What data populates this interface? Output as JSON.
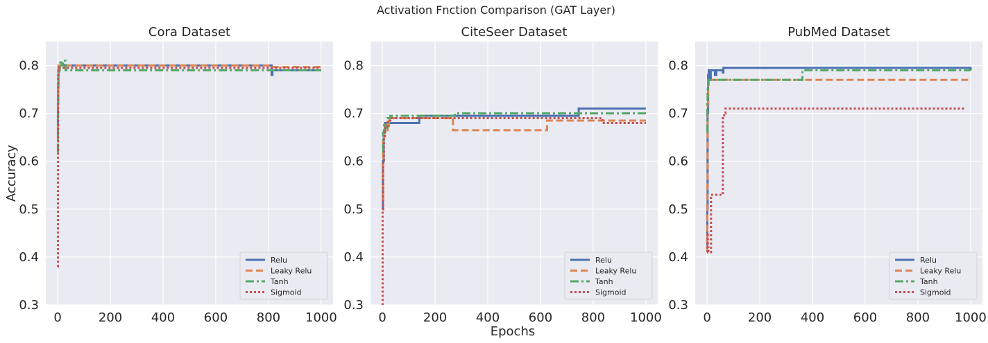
{
  "figure": {
    "suptitle": "Activation Fnction Comparison  (GAT Layer)",
    "ylabel": "Accuracy",
    "xlabel": "Epochs"
  },
  "colors": {
    "Relu": "#4c72b0",
    "Leaky Relu": "#dd8452",
    "Tanh": "#55a868",
    "Sigmoid": "#c44e52"
  },
  "styles": {
    "Relu": "solid",
    "Leaky Relu": "dashed",
    "Tanh": "dashdot",
    "Sigmoid": "dotted"
  },
  "chart_data": [
    {
      "type": "line",
      "title": "Cora Dataset",
      "xlim": [
        -45,
        1045
      ],
      "ylim": [
        0.3,
        0.85
      ],
      "xticks": [
        0,
        200,
        400,
        600,
        800,
        1000
      ],
      "yticks": [
        0.3,
        0.4,
        0.5,
        0.6,
        0.7,
        0.8
      ],
      "legend": "lower-right",
      "series": [
        {
          "name": "Relu",
          "x": [
            0,
            1,
            2,
            3,
            5,
            10,
            810,
            812,
            815,
            820,
            1000
          ],
          "y": [
            0.65,
            0.72,
            0.76,
            0.79,
            0.8,
            0.8,
            0.8,
            0.78,
            0.79,
            0.79,
            0.79
          ]
        },
        {
          "name": "Leaky Relu",
          "x": [
            0,
            1,
            2,
            3,
            5,
            10,
            800,
            1000
          ],
          "y": [
            0.62,
            0.75,
            0.78,
            0.8,
            0.8,
            0.8,
            0.797,
            0.797
          ]
        },
        {
          "name": "Tanh",
          "x": [
            0,
            1,
            2,
            3,
            5,
            8,
            10,
            15,
            20,
            25,
            30,
            40,
            1000
          ],
          "y": [
            0.62,
            0.7,
            0.75,
            0.78,
            0.79,
            0.8,
            0.81,
            0.8,
            0.81,
            0.81,
            0.79,
            0.79,
            0.79
          ]
        },
        {
          "name": "Sigmoid",
          "x": [
            0,
            1,
            2,
            3,
            5,
            10,
            1000
          ],
          "y": [
            0.38,
            0.62,
            0.78,
            0.79,
            0.795,
            0.795,
            0.795
          ]
        }
      ]
    },
    {
      "type": "line",
      "title": "CiteSeer Dataset",
      "xlim": [
        -45,
        1045
      ],
      "ylim": [
        0.3,
        0.85
      ],
      "xticks": [
        0,
        200,
        400,
        600,
        800,
        1000
      ],
      "yticks": [
        0.3,
        0.4,
        0.5,
        0.6,
        0.7,
        0.8
      ],
      "legend": "lower-right",
      "series": [
        {
          "name": "Relu",
          "x": [
            0,
            2,
            5,
            10,
            135,
            140,
            740,
            745,
            1000
          ],
          "y": [
            0.5,
            0.6,
            0.66,
            0.68,
            0.68,
            0.695,
            0.695,
            0.71,
            0.71
          ]
        },
        {
          "name": "Leaky Relu",
          "x": [
            0,
            3,
            6,
            10,
            15,
            20,
            25,
            30,
            265,
            268,
            620,
            625,
            1000
          ],
          "y": [
            0.52,
            0.64,
            0.66,
            0.67,
            0.68,
            0.665,
            0.685,
            0.69,
            0.69,
            0.665,
            0.665,
            0.685,
            0.685
          ]
        },
        {
          "name": "Tanh",
          "x": [
            0,
            3,
            6,
            10,
            20,
            30,
            270,
            275,
            1000
          ],
          "y": [
            0.62,
            0.66,
            0.68,
            0.67,
            0.69,
            0.695,
            0.695,
            0.7,
            0.7
          ]
        },
        {
          "name": "Sigmoid",
          "x": [
            0,
            1,
            3,
            6,
            10,
            20,
            30,
            830,
            835,
            1000
          ],
          "y": [
            0.3,
            0.5,
            0.6,
            0.65,
            0.67,
            0.685,
            0.69,
            0.69,
            0.68,
            0.68
          ]
        }
      ]
    },
    {
      "type": "line",
      "title": "PubMed Dataset",
      "xlim": [
        -45,
        1045
      ],
      "ylim": [
        0.3,
        0.85
      ],
      "xticks": [
        0,
        200,
        400,
        600,
        800,
        1000
      ],
      "yticks": [
        0.3,
        0.4,
        0.5,
        0.6,
        0.7,
        0.8
      ],
      "legend": "lower-right",
      "series": [
        {
          "name": "Relu",
          "x": [
            0,
            1,
            2,
            4,
            6,
            10,
            14,
            30,
            35,
            60,
            62,
            1000
          ],
          "y": [
            0.41,
            0.5,
            0.7,
            0.78,
            0.79,
            0.77,
            0.79,
            0.78,
            0.79,
            0.785,
            0.795,
            0.79
          ]
        },
        {
          "name": "Leaky Relu",
          "x": [
            0,
            1,
            2,
            4,
            6,
            10,
            1000
          ],
          "y": [
            0.41,
            0.55,
            0.72,
            0.76,
            0.77,
            0.77,
            0.77
          ]
        },
        {
          "name": "Tanh",
          "x": [
            0,
            1,
            2,
            4,
            6,
            10,
            360,
            362,
            1000
          ],
          "y": [
            0.66,
            0.72,
            0.75,
            0.77,
            0.77,
            0.77,
            0.77,
            0.79,
            0.79
          ]
        },
        {
          "name": "Sigmoid",
          "x": [
            0,
            1,
            3,
            5,
            10,
            15,
            20,
            40,
            45,
            55,
            60,
            65,
            70,
            980
          ],
          "y": [
            0.41,
            0.45,
            0.42,
            0.41,
            0.41,
            0.53,
            0.53,
            0.53,
            0.53,
            0.53,
            0.69,
            0.7,
            0.71,
            0.71
          ]
        }
      ]
    }
  ]
}
